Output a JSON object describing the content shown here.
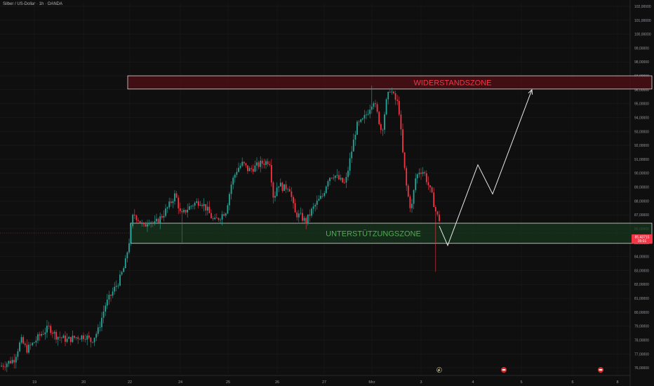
{
  "header": {
    "title": "Silber / US-Dollar · 1h · OANDA"
  },
  "colors": {
    "background": "#0f0f0f",
    "grid": "#1c1c1c",
    "up": "#26a69a",
    "down": "#f23645",
    "axis_text": "#9598a1",
    "resistance_fill": "#4a0f14",
    "resistance_text": "#f23645",
    "support_fill": "#16361c",
    "support_text": "#4caf50",
    "zone_border": "#d8d8d8",
    "projection": "#e8e8e8",
    "price_label": "#f23645"
  },
  "chart_data": {
    "type": "candlestick",
    "title": "Silber / US-Dollar · 1h · OANDA",
    "ylim": [
      75.6,
      102.2
    ],
    "xlim": [
      0,
      932
    ],
    "y_ticks": [
      "76,00000",
      "77,00000",
      "78,00000",
      "79,00000",
      "80,00000",
      "81,00000",
      "82,00000",
      "83,00000",
      "84,00000",
      "85,00000",
      "86,00000",
      "87,00000",
      "88,00000",
      "89,00000",
      "90,00000",
      "91,00000",
      "92,00000",
      "93,00000",
      "94,00000",
      "95,00000",
      "96,00000",
      "97,00000",
      "98,00000",
      "99,00000",
      "100,00000",
      "101,00000",
      "102,00000"
    ],
    "y_tick_values": [
      76,
      77,
      78,
      79,
      80,
      81,
      82,
      83,
      84,
      85,
      86,
      87,
      88,
      89,
      90,
      91,
      92,
      93,
      94,
      95,
      96,
      97,
      98,
      99,
      100,
      101,
      102
    ],
    "x_ticks": [
      {
        "label": "19",
        "x": 49
      },
      {
        "label": "20",
        "x": 119
      },
      {
        "label": "22",
        "x": 185
      },
      {
        "label": "24",
        "x": 257
      },
      {
        "label": "25",
        "x": 325
      },
      {
        "label": "26",
        "x": 395
      },
      {
        "label": "27",
        "x": 462
      },
      {
        "label": "Mrz",
        "x": 530
      },
      {
        "label": "3",
        "x": 600
      },
      {
        "label": "4",
        "x": 674
      },
      {
        "label": "5",
        "x": 743
      },
      {
        "label": "6",
        "x": 816
      },
      {
        "label": "8",
        "x": 880
      }
    ],
    "price_path": [
      [
        0,
        76.1
      ],
      [
        20,
        76.6
      ],
      [
        30,
        78.0
      ],
      [
        38,
        77.3
      ],
      [
        48,
        77.8
      ],
      [
        58,
        78.4
      ],
      [
        70,
        78.9
      ],
      [
        80,
        78.3
      ],
      [
        96,
        78.0
      ],
      [
        108,
        78.2
      ],
      [
        122,
        78.3
      ],
      [
        130,
        77.9
      ],
      [
        140,
        78.7
      ],
      [
        150,
        80.5
      ],
      [
        160,
        81.4
      ],
      [
        170,
        82.3
      ],
      [
        178,
        83.4
      ],
      [
        184,
        85.1
      ],
      [
        190,
        87.1
      ],
      [
        197,
        86.7
      ],
      [
        205,
        86.1
      ],
      [
        212,
        86.7
      ],
      [
        220,
        86.3
      ],
      [
        232,
        87.0
      ],
      [
        240,
        87.6
      ],
      [
        250,
        88.5
      ],
      [
        258,
        86.9
      ],
      [
        266,
        87.4
      ],
      [
        276,
        87.8
      ],
      [
        286,
        88.0
      ],
      [
        296,
        87.3
      ],
      [
        305,
        86.5
      ],
      [
        314,
        86.9
      ],
      [
        322,
        87.3
      ],
      [
        330,
        89.3
      ],
      [
        338,
        90.3
      ],
      [
        346,
        90.7
      ],
      [
        354,
        90.2
      ],
      [
        362,
        90.4
      ],
      [
        372,
        90.7
      ],
      [
        384,
        90.9
      ],
      [
        390,
        88.1
      ],
      [
        396,
        89.3
      ],
      [
        404,
        88.9
      ],
      [
        412,
        89.1
      ],
      [
        420,
        87.1
      ],
      [
        428,
        86.9
      ],
      [
        436,
        86.5
      ],
      [
        444,
        87.3
      ],
      [
        452,
        87.9
      ],
      [
        460,
        88.4
      ],
      [
        468,
        89.7
      ],
      [
        476,
        89.9
      ],
      [
        484,
        89.5
      ],
      [
        492,
        89.2
      ],
      [
        500,
        91.3
      ],
      [
        508,
        93.4
      ],
      [
        516,
        93.7
      ],
      [
        524,
        94.4
      ],
      [
        532,
        95.3
      ],
      [
        538,
        94.2
      ],
      [
        544,
        92.9
      ],
      [
        550,
        95.0
      ],
      [
        556,
        96.1
      ],
      [
        562,
        95.4
      ],
      [
        568,
        94.9
      ],
      [
        574,
        91.4
      ],
      [
        580,
        88.7
      ],
      [
        586,
        87.3
      ],
      [
        592,
        89.6
      ],
      [
        598,
        90.2
      ],
      [
        604,
        90.1
      ],
      [
        610,
        89.2
      ],
      [
        616,
        88.3
      ],
      [
        622,
        87.0
      ],
      [
        628,
        86.5
      ]
    ],
    "wick_extremes": [
      {
        "x": 260,
        "low": 84.9
      },
      {
        "x": 620,
        "low": 82.9
      },
      {
        "x": 530,
        "high": 96.3
      }
    ],
    "last_price": "85,43715",
    "countdown": "05:01",
    "zones": [
      {
        "name": "WIDERSTANDSZONE",
        "low": 96.05,
        "high": 97.0,
        "x_start": 182,
        "x_end": 929
      },
      {
        "name": "UNTERSTÜTZUNGSZONE",
        "low": 84.95,
        "high": 86.4,
        "x_start": 186,
        "x_end": 929
      }
    ],
    "projection_path": [
      [
        626,
        86.2
      ],
      [
        638,
        84.8
      ],
      [
        681,
        90.6
      ],
      [
        702,
        88.5
      ],
      [
        758,
        96.0
      ]
    ],
    "current_price_line": 85.7
  }
}
